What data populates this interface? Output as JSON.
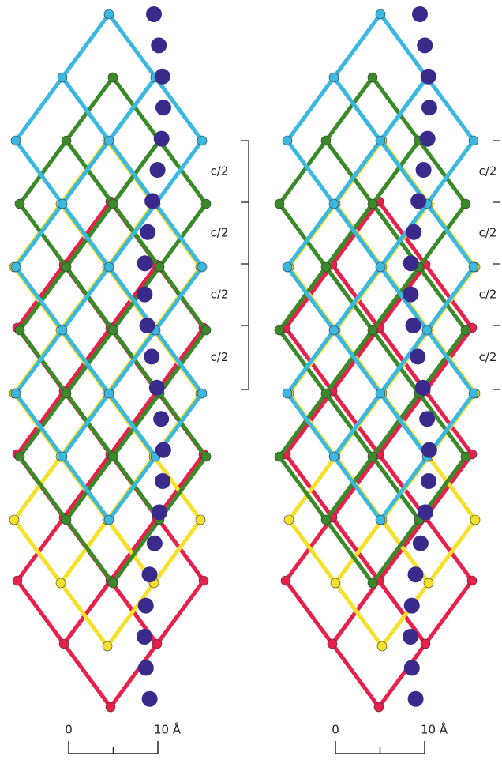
{
  "panels": [
    {
      "period_labels": [
        "c/2",
        "c/2",
        "c/2",
        "c/2"
      ],
      "scale": {
        "start": "0",
        "end": "10 Å"
      }
    },
    {
      "period_labels": [
        "c/2",
        "c/2",
        "c/2",
        "c/2"
      ],
      "scale": {
        "start": "0",
        "end": "10 Å"
      }
    }
  ]
}
